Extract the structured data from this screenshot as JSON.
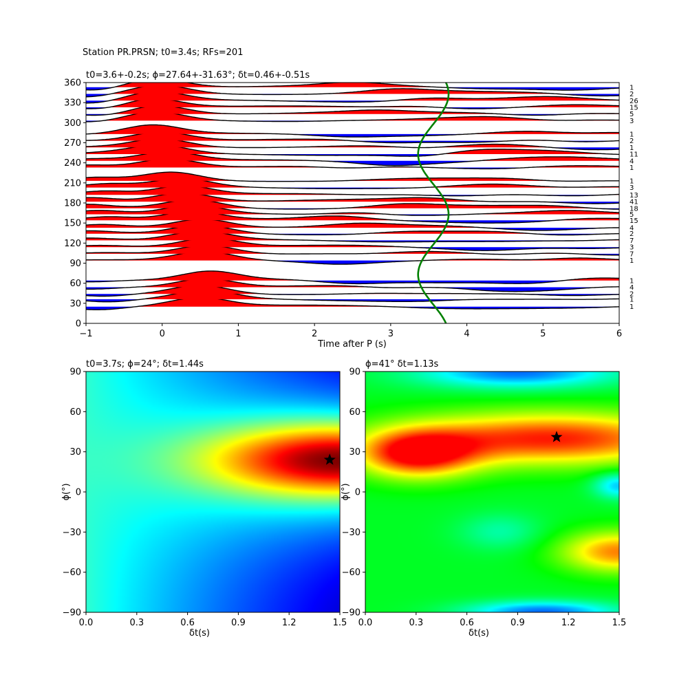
{
  "figure": {
    "suptitle": "Station PR.PRSN; t0=3.4s; RFs=201"
  },
  "chart_data": [
    {
      "id": "rf-stack",
      "type": "line",
      "title": "t0=3.6+-0.2s; ϕ=27.64+-31.63°; δt=0.46+-0.51s",
      "xlabel": "Time after P (s)",
      "ylabel": "",
      "xlim": [
        -1,
        6
      ],
      "ylim": [
        0,
        360
      ],
      "xticks": [
        "−1",
        "0",
        "1",
        "2",
        "3",
        "4",
        "5",
        "6"
      ],
      "yticks": [
        "0",
        "30",
        "60",
        "90",
        "120",
        "150",
        "180",
        "210",
        "240",
        "270",
        "300",
        "330",
        "360"
      ],
      "positive_fill": "#ff0000",
      "negative_fill": "#0000ff",
      "trace_color": "#000000",
      "curve_color": "#008000",
      "traces": [
        {
          "baz": 25,
          "count": "1"
        },
        {
          "baz": 36,
          "count": "1"
        },
        {
          "baz": 44,
          "count": "2"
        },
        {
          "baz": 54,
          "count": "4"
        },
        {
          "baz": 64,
          "count": "1"
        },
        {
          "baz": 94,
          "count": "1"
        },
        {
          "baz": 104,
          "count": "7"
        },
        {
          "baz": 114,
          "count": "3"
        },
        {
          "baz": 124,
          "count": "7"
        },
        {
          "baz": 134,
          "count": "2"
        },
        {
          "baz": 143,
          "count": "4"
        },
        {
          "baz": 154,
          "count": "15"
        },
        {
          "baz": 163,
          "count": "5"
        },
        {
          "baz": 172,
          "count": "18"
        },
        {
          "baz": 182,
          "count": "41"
        },
        {
          "baz": 192,
          "count": "13"
        },
        {
          "baz": 203,
          "count": "3"
        },
        {
          "baz": 213,
          "count": "1"
        },
        {
          "baz": 233,
          "count": "1"
        },
        {
          "baz": 243,
          "count": "4"
        },
        {
          "baz": 253,
          "count": "11"
        },
        {
          "baz": 263,
          "count": "1"
        },
        {
          "baz": 273,
          "count": "2"
        },
        {
          "baz": 283,
          "count": "1"
        },
        {
          "baz": 303,
          "count": "3"
        },
        {
          "baz": 313,
          "count": "5"
        },
        {
          "baz": 323,
          "count": "15"
        },
        {
          "baz": 333,
          "count": "26"
        },
        {
          "baz": 343,
          "count": "2"
        },
        {
          "baz": 353,
          "count": "1"
        }
      ]
    },
    {
      "id": "grid-search-energy",
      "type": "heatmap",
      "title": "t0=3.7s; ϕ=24°; δt=1.44s",
      "xlabel": "δt(s)",
      "ylabel": "ϕ(°)",
      "xlim": [
        0,
        1.5
      ],
      "ylim": [
        -90,
        90
      ],
      "xticks": [
        "0.0",
        "0.3",
        "0.6",
        "0.9",
        "1.2",
        "1.5"
      ],
      "yticks": [
        "−90",
        "−60",
        "−30",
        "0",
        "30",
        "60",
        "90"
      ],
      "colormap": "jet",
      "best": {
        "dt": 1.44,
        "phi": 24
      }
    },
    {
      "id": "grid-search-xcorr",
      "type": "heatmap",
      "title": "ϕ=41° δt=1.13s",
      "xlabel": "δt(s)",
      "ylabel": "ϕ(°)",
      "xlim": [
        0,
        1.5
      ],
      "ylim": [
        -90,
        90
      ],
      "xticks": [
        "0.0",
        "0.3",
        "0.6",
        "0.9",
        "1.2",
        "1.5"
      ],
      "yticks": [
        "−90",
        "−60",
        "−30",
        "0",
        "30",
        "60",
        "90"
      ],
      "colormap": "hsv",
      "best": {
        "dt": 1.13,
        "phi": 41
      }
    }
  ]
}
